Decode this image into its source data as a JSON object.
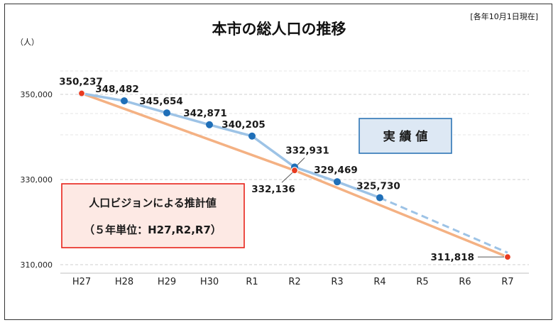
{
  "chart_data": {
    "type": "line",
    "title": "本市の総人口の推移",
    "note": "[各年10月1日現在]",
    "y_unit": "（人）",
    "categories": [
      "H27",
      "H28",
      "H29",
      "H30",
      "R1",
      "R2",
      "R3",
      "R4",
      "R5",
      "R6",
      "R7"
    ],
    "ylim": [
      308000,
      358000
    ],
    "yticks": [
      310000,
      330000,
      350000
    ],
    "ytick_labels": [
      "310,000",
      "330,000",
      "350,000"
    ],
    "gridlines": "dashed horizontal",
    "series": [
      {
        "name": "実 績 値",
        "color": "#9dc3e6",
        "marker_color": "#1f6fb8",
        "values": [
          350237,
          348482,
          345654,
          342871,
          340205,
          332931,
          329469,
          325730,
          null,
          null,
          null
        ],
        "labels": [
          "350,237",
          "348,482",
          "345,654",
          "342,871",
          "340,205",
          "332,931",
          "329,469",
          "325,730",
          "",
          "",
          ""
        ],
        "dashed_extension_to": {
          "category": "R7",
          "value": 311818
        }
      },
      {
        "name": "人口ビジョンによる推計値",
        "name_sub": "（５年単位：H27,R2,R7）",
        "color": "#f4b183",
        "marker_color": "#e83a1f",
        "values": [
          350237,
          null,
          null,
          null,
          null,
          332136,
          null,
          null,
          null,
          null,
          311818
        ],
        "labels": [
          "",
          "",
          "",
          "",
          "",
          "332,136",
          "",
          "",
          "",
          "",
          "311,818"
        ]
      }
    ]
  }
}
